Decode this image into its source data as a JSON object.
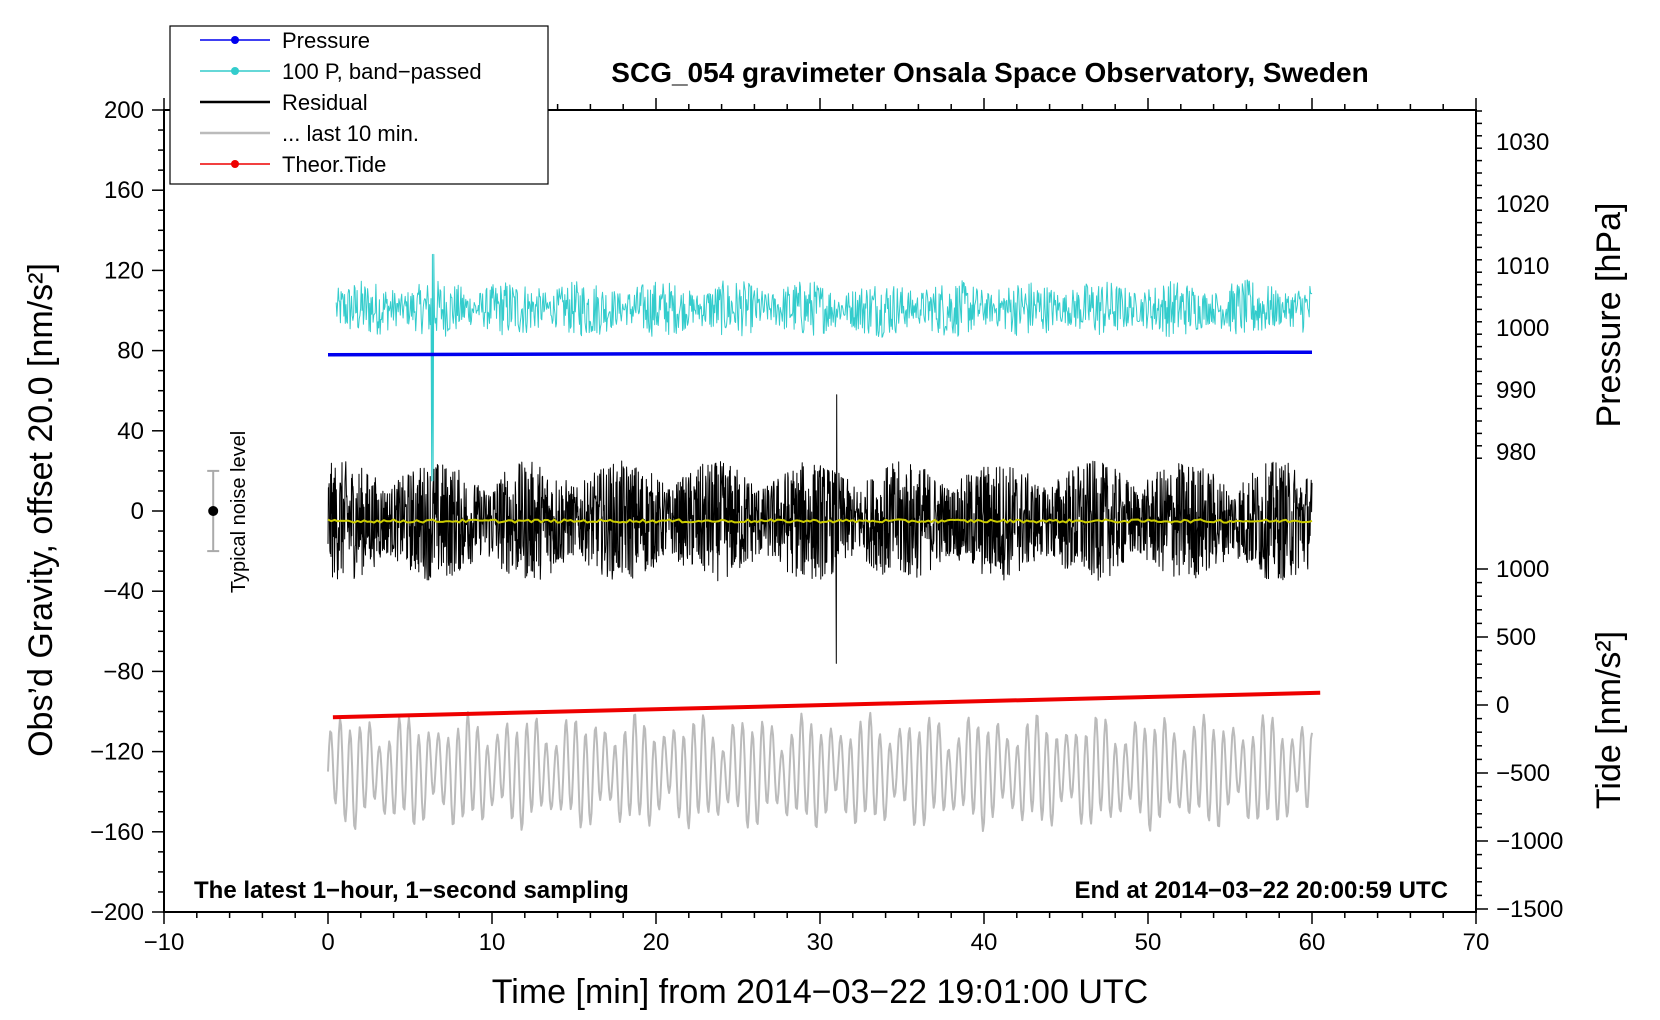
{
  "chart_data": {
    "type": "line",
    "title": "SCG_054 gravimeter Onsala Space Observatory, Sweden",
    "xlabel": "Time [min] from 2014−03−22 19:01:00 UTC",
    "ylabel_left": "Obs’d Gravity, offset 20.0 [nm/s²]",
    "ylabel_pressure": "Pressure [hPa]",
    "ylabel_tide": "Tide [nm/s²]",
    "xlim": [
      -10,
      70
    ],
    "ylim": [
      -200,
      200
    ],
    "x_ticks": [
      -10,
      0,
      10,
      20,
      30,
      40,
      50,
      60,
      70
    ],
    "x_tick_labels": [
      "−10",
      "0",
      "10",
      "20",
      "30",
      "40",
      "50",
      "60",
      "70"
    ],
    "y_ticks": [
      -200,
      -160,
      -120,
      -80,
      -40,
      0,
      40,
      80,
      120,
      160,
      200
    ],
    "y_tick_labels": [
      "−200",
      "−160",
      "−120",
      "−80",
      "−40",
      "0",
      "40",
      "80",
      "120",
      "160",
      "200"
    ],
    "pressure_axis": {
      "range": [
        975,
        1035
      ],
      "ticks": [
        980,
        990,
        1000,
        1010,
        1020,
        1030
      ],
      "tick_labels": [
        "980",
        "990",
        "1000",
        "1010",
        "1020",
        "1030"
      ]
    },
    "tide_axis": {
      "range": [
        -1500,
        1200
      ],
      "ticks": [
        -1500,
        -1000,
        -500,
        0,
        500,
        1000
      ],
      "tick_labels": [
        "−1500",
        "−1000",
        "−500",
        "0",
        "500",
        "1000"
      ]
    },
    "legend": [
      {
        "label": "Pressure",
        "color": "#0000ee",
        "marker": true
      },
      {
        "label": "100 P, band−passed",
        "color": "#33cccc",
        "marker": true
      },
      {
        "label": "Residual",
        "color": "#000000",
        "marker": false
      },
      {
        "label": "... last 10 min.",
        "color": "#bbbbbb",
        "marker": false
      },
      {
        "label": "Theor.Tide",
        "color": "#ee0000",
        "marker": true
      }
    ],
    "series": [
      {
        "name": "Pressure",
        "color": "#0000ee",
        "axis": "pressure",
        "x": [
          0,
          60
        ],
        "values": [
          995.7,
          996.1
        ]
      },
      {
        "name": "100 P, band−passed",
        "color": "#33cccc",
        "axis": "left",
        "x_range": [
          0.5,
          60
        ],
        "center": 101,
        "amplitude": 12
      },
      {
        "name": "Residual",
        "color": "#000000",
        "axis": "left",
        "x_range": [
          0,
          60
        ],
        "center": -5,
        "amplitude": 30
      },
      {
        "name": "Residual smoothed",
        "color": "#cccc00",
        "axis": "left",
        "x_range": [
          0,
          60
        ],
        "values_constant": -5
      },
      {
        "name": "... last 10 min.",
        "color": "#bbbbbb",
        "axis": "left",
        "x_range": [
          0,
          60
        ],
        "center": -130,
        "amplitude": 25
      },
      {
        "name": "Theor.Tide",
        "color": "#ee0000",
        "axis": "tide",
        "x": [
          0.3,
          60.5
        ],
        "values": [
          -90,
          90
        ]
      }
    ],
    "noise_indicator": {
      "label": "Typical noise level",
      "x": -7,
      "center": 0,
      "half_range": 20
    },
    "annotations": [
      {
        "text": "The latest 1−hour, 1−second sampling",
        "position": "bottom-left"
      },
      {
        "text": "End at 2014−03−22 20:00:59 UTC",
        "position": "bottom-right"
      }
    ]
  }
}
